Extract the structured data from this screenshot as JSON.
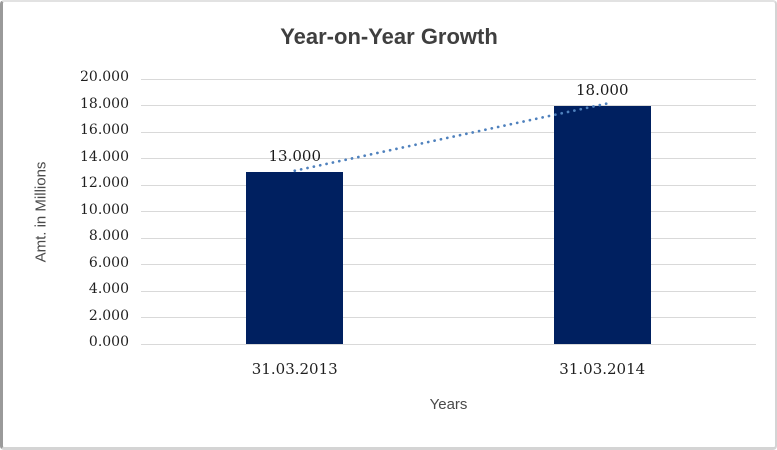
{
  "chart_data": {
    "type": "bar",
    "title": "Year-on-Year Growth",
    "xlabel": "Years",
    "ylabel": "Amt. in Millions",
    "categories": [
      "31.03.2013",
      "31.03.2014"
    ],
    "values": [
      13,
      18
    ],
    "data_labels": [
      "13.000",
      "18.000"
    ],
    "ylim": [
      0,
      20
    ],
    "ytick_step": 2,
    "ytick_labels": [
      "0.000",
      "2.000",
      "4.000",
      "6.000",
      "8.000",
      "10.000",
      "12.000",
      "14.000",
      "16.000",
      "18.000",
      "20.000"
    ],
    "grid": true,
    "legend_position": "none",
    "bar_color": "#002060",
    "gridline_color": "#D9D9D9",
    "trendline": {
      "type": "linear",
      "style": "dotted",
      "color": "#4F81BD"
    },
    "title_color": "#3F3F3F",
    "tick_text_color": "#1F1F1F",
    "axis_title_color": "#4A4A4A",
    "background": "#FFFFFF"
  }
}
